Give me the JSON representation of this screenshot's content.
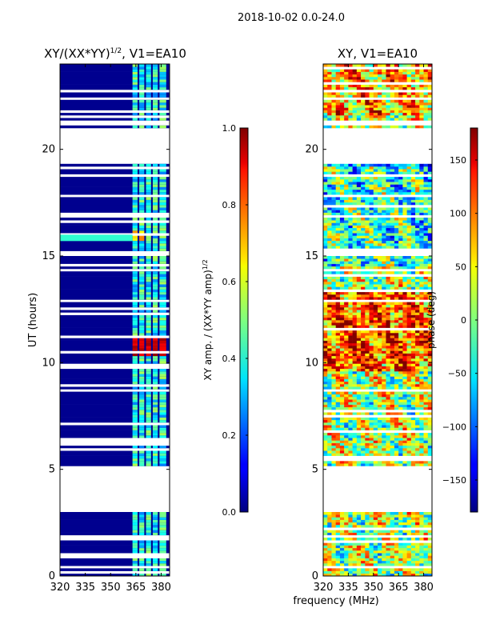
{
  "figure": {
    "suptitle": "2018-10-02 0.0-24.0",
    "xlabel": "frequency (MHz)"
  },
  "chart_data": [
    {
      "type": "heatmap",
      "title_main": "XY/(XX*YY)",
      "title_sup": "1/2",
      "title_tail": ", V1=EA10",
      "ylabel": "UT (hours)",
      "xlim": [
        320,
        385
      ],
      "ylim": [
        0,
        24
      ],
      "xticks": [
        320,
        335,
        350,
        365,
        380
      ],
      "yticks": [
        0,
        5,
        10,
        15,
        20
      ],
      "data_columns": [
        [
          363,
          366
        ],
        [
          367,
          370
        ],
        [
          371,
          374
        ],
        [
          375,
          378
        ],
        [
          379,
          383
        ]
      ],
      "colorbar": {
        "label_main": "XY amp. / (XX*YY amp)",
        "label_sup": "1/2",
        "range": [
          0.0,
          1.0
        ],
        "ticks": [
          "0.0",
          "0.2",
          "0.4",
          "0.6",
          "0.8",
          "1.0"
        ],
        "tick_values": [
          0.0,
          0.2,
          0.4,
          0.6,
          0.8,
          1.0
        ],
        "colormap": "jet"
      }
    },
    {
      "type": "heatmap",
      "title": "XY, V1=EA10",
      "xlim": [
        320,
        385
      ],
      "ylim": [
        0,
        24
      ],
      "xticks": [
        320,
        335,
        350,
        365,
        380
      ],
      "yticks": [
        0,
        5,
        10,
        15,
        20
      ],
      "colorbar": {
        "label": "phase (deg)",
        "range": [
          -180,
          180
        ],
        "ticks": [
          "150",
          "100",
          "50",
          "0",
          "−50",
          "−100",
          "−150"
        ],
        "tick_values": [
          150,
          100,
          50,
          0,
          -50,
          -100,
          -150
        ],
        "colormap": "jet"
      }
    }
  ],
  "gaps_ut": [
    [
      22.3,
      22.4
    ],
    [
      21.15,
      21.35
    ],
    [
      19.3,
      21.0
    ],
    [
      17.8,
      17.9
    ],
    [
      16.8,
      16.95
    ],
    [
      15.05,
      15.25
    ],
    [
      14.3,
      14.45
    ],
    [
      12.8,
      12.9
    ],
    [
      11.95,
      12.05
    ],
    [
      9.3,
      9.4
    ],
    [
      8.6,
      8.75
    ],
    [
      4.95,
      5.05
    ],
    [
      3.0,
      5.2
    ],
    [
      1.85,
      1.95
    ],
    [
      0.35,
      0.45
    ]
  ],
  "colors": {
    "background": "#ffffff",
    "axis": "#000000",
    "jet_low": "#00007f",
    "jet_high": "#7f0000"
  }
}
